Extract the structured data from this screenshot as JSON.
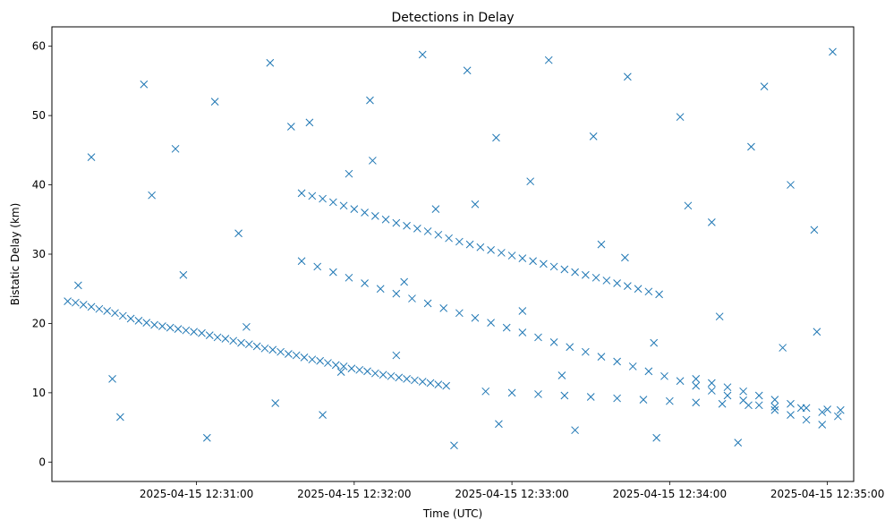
{
  "chart_data": {
    "type": "scatter",
    "title": "Detections in Delay",
    "xlabel": "Time (UTC)",
    "ylabel": "Bistatic Delay (km)",
    "xlim": [
      "2025-04-15 12:30:05",
      "2025-04-15 12:35:10"
    ],
    "ylim": [
      -2.8,
      62.8
    ],
    "xticks": [
      "2025-04-15 12:31:00",
      "2025-04-15 12:32:00",
      "2025-04-15 12:33:00",
      "2025-04-15 12:34:00",
      "2025-04-15 12:35:00"
    ],
    "yticks": [
      0,
      10,
      20,
      30,
      40,
      50,
      60
    ],
    "grid": false,
    "marker": "x",
    "color": "#1f77b4",
    "series": [
      {
        "x_units": "seconds after 2025-04-15 12:30:00",
        "points": [
          [
            11,
            23.2
          ],
          [
            14,
            23.0
          ],
          [
            17,
            22.7
          ],
          [
            20,
            22.4
          ],
          [
            23,
            22.1
          ],
          [
            26,
            21.8
          ],
          [
            29,
            21.5
          ],
          [
            32,
            21.1
          ],
          [
            35,
            20.7
          ],
          [
            38,
            20.4
          ],
          [
            41,
            20.1
          ],
          [
            44,
            19.8
          ],
          [
            47,
            19.6
          ],
          [
            50,
            19.4
          ],
          [
            53,
            19.2
          ],
          [
            56,
            19.0
          ],
          [
            59,
            18.8
          ],
          [
            62,
            18.6
          ],
          [
            65,
            18.3
          ],
          [
            68,
            18.0
          ],
          [
            71,
            17.8
          ],
          [
            74,
            17.5
          ],
          [
            77,
            17.2
          ],
          [
            80,
            17.0
          ],
          [
            83,
            16.7
          ],
          [
            86,
            16.4
          ],
          [
            89,
            16.2
          ],
          [
            92,
            15.9
          ],
          [
            95,
            15.6
          ],
          [
            98,
            15.4
          ],
          [
            101,
            15.1
          ],
          [
            104,
            14.8
          ],
          [
            107,
            14.6
          ],
          [
            110,
            14.3
          ],
          [
            113,
            14.0
          ],
          [
            116,
            13.8
          ],
          [
            119,
            13.5
          ],
          [
            122,
            13.3
          ],
          [
            125,
            13.1
          ],
          [
            128,
            12.8
          ],
          [
            131,
            12.6
          ],
          [
            134,
            12.4
          ],
          [
            137,
            12.2
          ],
          [
            140,
            12.0
          ],
          [
            143,
            11.8
          ],
          [
            146,
            11.6
          ],
          [
            149,
            11.4
          ],
          [
            152,
            11.2
          ],
          [
            155,
            11.0
          ],
          [
            100,
            38.8
          ],
          [
            104,
            38.4
          ],
          [
            108,
            38.0
          ],
          [
            112,
            37.5
          ],
          [
            116,
            37.0
          ],
          [
            120,
            36.5
          ],
          [
            124,
            36.0
          ],
          [
            128,
            35.5
          ],
          [
            132,
            35.0
          ],
          [
            136,
            34.5
          ],
          [
            140,
            34.1
          ],
          [
            144,
            33.7
          ],
          [
            148,
            33.3
          ],
          [
            152,
            32.8
          ],
          [
            156,
            32.3
          ],
          [
            160,
            31.8
          ],
          [
            164,
            31.4
          ],
          [
            168,
            31.0
          ],
          [
            172,
            30.6
          ],
          [
            176,
            30.2
          ],
          [
            180,
            29.8
          ],
          [
            184,
            29.4
          ],
          [
            188,
            29.0
          ],
          [
            192,
            28.6
          ],
          [
            196,
            28.2
          ],
          [
            200,
            27.8
          ],
          [
            204,
            27.4
          ],
          [
            208,
            27.0
          ],
          [
            212,
            26.6
          ],
          [
            216,
            26.2
          ],
          [
            220,
            25.8
          ],
          [
            224,
            25.4
          ],
          [
            228,
            25.0
          ],
          [
            232,
            24.6
          ],
          [
            236,
            24.2
          ],
          [
            100,
            29.0
          ],
          [
            106,
            28.2
          ],
          [
            112,
            27.4
          ],
          [
            118,
            26.6
          ],
          [
            124,
            25.8
          ],
          [
            130,
            25.0
          ],
          [
            136,
            24.3
          ],
          [
            142,
            23.6
          ],
          [
            148,
            22.9
          ],
          [
            154,
            22.2
          ],
          [
            160,
            21.5
          ],
          [
            166,
            20.8
          ],
          [
            172,
            20.1
          ],
          [
            178,
            19.4
          ],
          [
            184,
            18.7
          ],
          [
            190,
            18.0
          ],
          [
            196,
            17.3
          ],
          [
            202,
            16.6
          ],
          [
            208,
            15.9
          ],
          [
            214,
            15.2
          ],
          [
            220,
            14.5
          ],
          [
            226,
            13.8
          ],
          [
            232,
            13.1
          ],
          [
            238,
            12.4
          ],
          [
            244,
            11.7
          ],
          [
            250,
            11.0
          ],
          [
            256,
            10.3
          ],
          [
            262,
            9.6
          ],
          [
            268,
            8.9
          ],
          [
            274,
            8.2
          ],
          [
            280,
            7.5
          ],
          [
            286,
            6.8
          ],
          [
            292,
            6.1
          ],
          [
            298,
            5.4
          ],
          [
            250,
            12.0
          ],
          [
            256,
            11.4
          ],
          [
            262,
            10.8
          ],
          [
            268,
            10.2
          ],
          [
            274,
            9.6
          ],
          [
            280,
            9.0
          ],
          [
            286,
            8.4
          ],
          [
            292,
            7.8
          ],
          [
            298,
            7.2
          ],
          [
            304,
            6.6
          ],
          [
            170,
            10.2
          ],
          [
            180,
            10.0
          ],
          [
            190,
            9.8
          ],
          [
            200,
            9.6
          ],
          [
            210,
            9.4
          ],
          [
            220,
            9.2
          ],
          [
            230,
            9.0
          ],
          [
            240,
            8.8
          ],
          [
            250,
            8.6
          ],
          [
            260,
            8.4
          ],
          [
            270,
            8.2
          ],
          [
            280,
            8.0
          ],
          [
            290,
            7.8
          ],
          [
            300,
            7.6
          ],
          [
            305,
            7.5
          ],
          [
            15,
            25.5
          ],
          [
            28,
            12.0
          ],
          [
            40,
            54.5
          ],
          [
            52,
            45.2
          ],
          [
            64,
            3.5
          ],
          [
            76,
            33.0
          ],
          [
            88,
            57.6
          ],
          [
            96,
            48.4
          ],
          [
            108,
            6.8
          ],
          [
            118,
            41.6
          ],
          [
            126,
            52.2
          ],
          [
            136,
            15.4
          ],
          [
            146,
            58.8
          ],
          [
            158,
            2.4
          ],
          [
            166,
            37.2
          ],
          [
            174,
            46.8
          ],
          [
            184,
            21.8
          ],
          [
            194,
            58.0
          ],
          [
            204,
            4.6
          ],
          [
            214,
            31.4
          ],
          [
            224,
            55.6
          ],
          [
            234,
            17.2
          ],
          [
            244,
            49.8
          ],
          [
            256,
            34.6
          ],
          [
            266,
            2.8
          ],
          [
            276,
            54.2
          ],
          [
            286,
            40.0
          ],
          [
            296,
            18.8
          ],
          [
            302,
            59.2
          ],
          [
            20,
            44.0
          ],
          [
            31,
            6.5
          ],
          [
            43,
            38.5
          ],
          [
            55,
            27.0
          ],
          [
            67,
            52.0
          ],
          [
            79,
            19.5
          ],
          [
            90,
            8.5
          ],
          [
            103,
            49.0
          ],
          [
            115,
            13.0
          ],
          [
            127,
            43.5
          ],
          [
            139,
            26.0
          ],
          [
            151,
            36.5
          ],
          [
            163,
            56.5
          ],
          [
            175,
            5.5
          ],
          [
            187,
            40.5
          ],
          [
            199,
            12.5
          ],
          [
            211,
            47.0
          ],
          [
            223,
            29.5
          ],
          [
            235,
            3.5
          ],
          [
            247,
            37.0
          ],
          [
            259,
            21.0
          ],
          [
            271,
            45.5
          ],
          [
            283,
            16.5
          ],
          [
            295,
            33.5
          ]
        ]
      }
    ]
  }
}
